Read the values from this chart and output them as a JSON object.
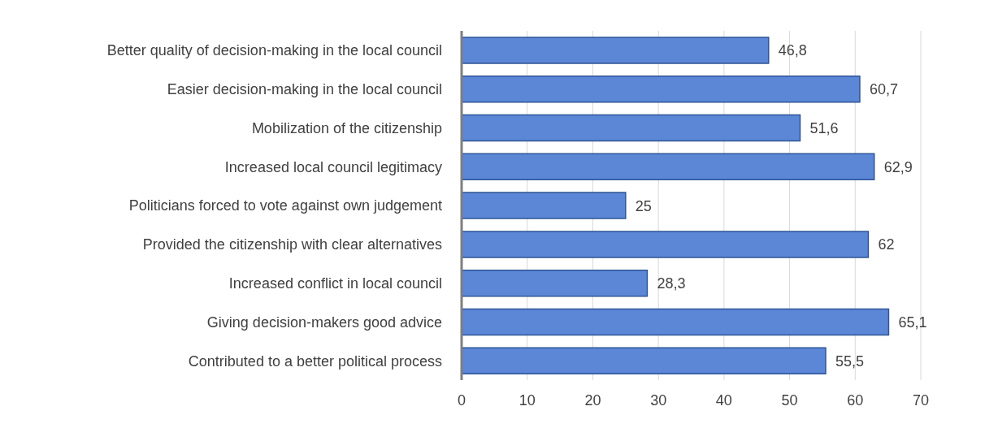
{
  "chart_data": {
    "type": "bar",
    "orientation": "horizontal",
    "categories": [
      "Better quality of decision-making in the local council",
      "Easier decision-making in the local council",
      "Mobilization of the citizenship",
      "Increased local council legitimacy",
      "Politicians forced to vote against own judgement",
      "Provided the citizenship with clear alternatives",
      "Increased conflict in local council",
      "Giving decision-makers good advice",
      "Contributed to a better political process"
    ],
    "values": [
      46.8,
      60.7,
      51.6,
      62.9,
      25,
      62,
      28.3,
      65.1,
      55.5
    ],
    "value_labels": [
      "46,8",
      "60,7",
      "51,6",
      "62,9",
      "25",
      "62",
      "28,3",
      "65,1",
      "55,5"
    ],
    "color": "#5b87d6",
    "xlim": [
      0,
      70
    ],
    "xticks": [
      0,
      10,
      20,
      30,
      40,
      50,
      60,
      70
    ],
    "grid": "x"
  }
}
